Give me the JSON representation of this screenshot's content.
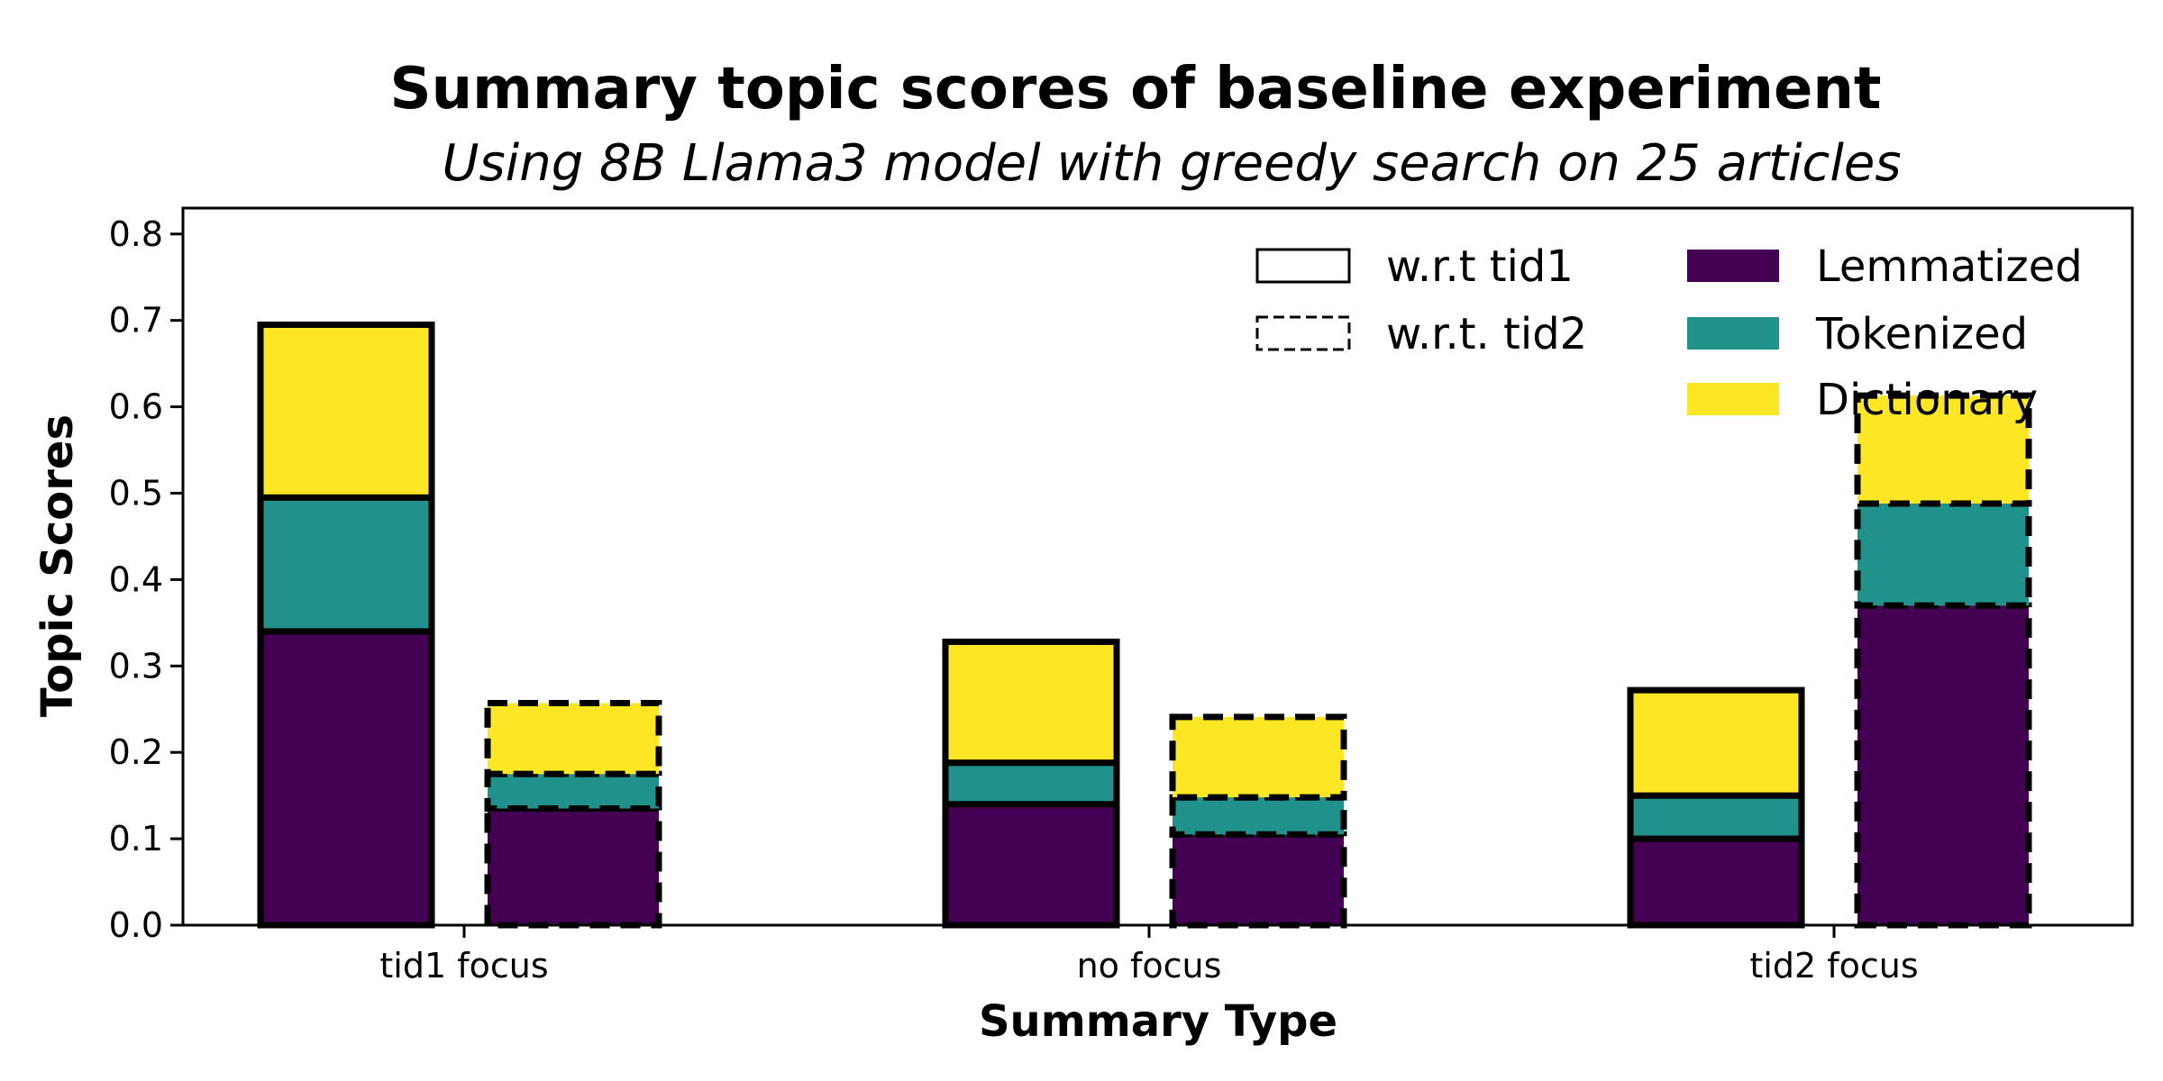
{
  "chart_data": {
    "type": "bar",
    "stacked": true,
    "title": "Summary topic scores of baseline experiment",
    "subtitle": "Using 8B Llama3 model with greedy search on 25 articles",
    "xlabel": "Summary Type",
    "ylabel": "Topic Scores",
    "categories": [
      "tid1 focus",
      "no focus",
      "tid2 focus"
    ],
    "ylim": [
      0,
      0.83
    ],
    "yticks": [
      "0.0",
      "0.1",
      "0.2",
      "0.3",
      "0.4",
      "0.5",
      "0.6",
      "0.7",
      "0.8"
    ],
    "grid": false,
    "legend_position": "top-right",
    "groups": [
      {
        "name": "w.r.t tid1",
        "border": "solid"
      },
      {
        "name": "w.r.t. tid2",
        "border": "dashed"
      }
    ],
    "series": [
      {
        "name": "Lemmatized",
        "color": "#440154",
        "tid1": [
          0.34,
          0.14,
          0.1
        ],
        "tid2": [
          0.135,
          0.105,
          0.37
        ]
      },
      {
        "name": "Tokenized",
        "color": "#21918c",
        "tid1": [
          0.155,
          0.048,
          0.05
        ],
        "tid2": [
          0.04,
          0.043,
          0.118
        ]
      },
      {
        "name": "Dictionary",
        "color": "#fde725",
        "tid1": [
          0.2,
          0.14,
          0.122
        ],
        "tid2": [
          0.082,
          0.093,
          0.125
        ]
      }
    ]
  }
}
